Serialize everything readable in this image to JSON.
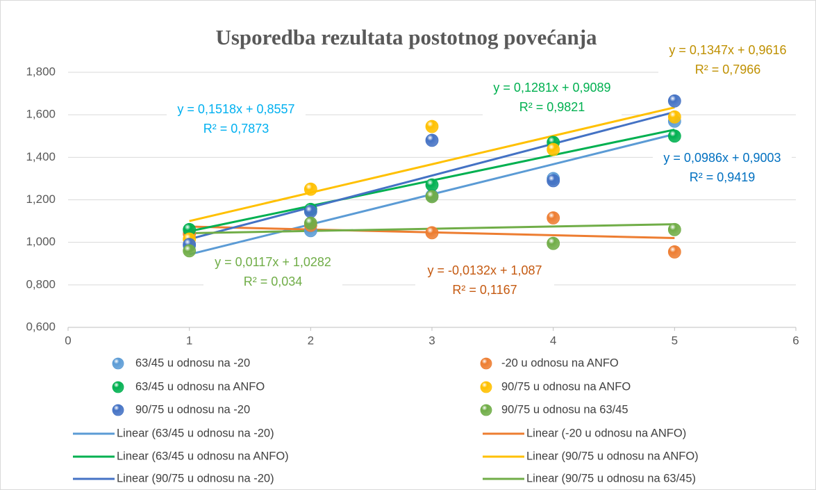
{
  "chart_data": {
    "type": "scatter",
    "title": "Usporedba rezultata postotnog povećanja",
    "x": [
      1,
      2,
      3,
      4,
      5
    ],
    "series": [
      {
        "name": "63/45 u odnosu na -20",
        "color": "#5b9bd5",
        "values": [
          0.985,
          1.055,
          1.22,
          1.3,
          1.57
        ]
      },
      {
        "name": "-20 u odnosu na ANFO",
        "color": "#ed7d31",
        "values": [
          1.04,
          1.08,
          1.045,
          1.115,
          0.955
        ]
      },
      {
        "name": "63/45 u odnosu na ANFO",
        "color": "#00b050",
        "values": [
          1.06,
          1.155,
          1.27,
          1.47,
          1.5
        ]
      },
      {
        "name": "90/75 u odnosu na ANFO",
        "color": "#ffc000",
        "values": [
          1.015,
          1.25,
          1.545,
          1.437,
          1.59
        ]
      },
      {
        "name": "90/75 u odnosu na -20",
        "color": "#4472c4",
        "values": [
          0.99,
          1.145,
          1.48,
          1.29,
          1.665
        ]
      },
      {
        "name": "90/75 u odnosu na 63/45",
        "color": "#70ad47",
        "values": [
          0.96,
          1.09,
          1.215,
          0.995,
          1.06
        ]
      }
    ],
    "trendline_names": [
      "Linear (63/45 u odnosu na -20)",
      "Linear (-20 u odnosu na ANFO)",
      "Linear (63/45 u odnosu na ANFO)",
      "Linear (90/75 u odnosu na ANFO)",
      "Linear (90/75 u odnosu na -20)",
      "Linear (90/75 u odnosu na 63/45)"
    ],
    "annotations": [
      {
        "lines": [
          "y = 0,1518x + 0,8557",
          "R² = 0,7873"
        ],
        "color": "#00b0f0"
      },
      {
        "lines": [
          "y = 0,0986x + 0,9003",
          "R² = 0,9419"
        ],
        "color": "#0070c0"
      },
      {
        "lines": [
          "y = -0,0132x + 1,087",
          "R² = 0,1167"
        ],
        "color": "#c55a11"
      },
      {
        "lines": [
          "y = 0,1281x + 0,9089",
          "R² = 0,9821"
        ],
        "color": "#00b050"
      },
      {
        "lines": [
          "y = 0,1347x + 0,9616",
          "R² = 0,7966"
        ],
        "color": "#bf9000"
      },
      {
        "lines": [
          "y = 0,0117x + 1,0282",
          "R² = 0,034"
        ],
        "color": "#70ad47"
      }
    ],
    "xlim": [
      0,
      6
    ],
    "xticks": [
      0,
      1,
      2,
      3,
      4,
      5,
      6
    ],
    "ylim": [
      0.6,
      1.8
    ],
    "yticks": [
      {
        "value": 0.6,
        "label": "0,600"
      },
      {
        "value": 0.8,
        "label": "0,800"
      },
      {
        "value": 1,
        "label": "1,000"
      },
      {
        "value": 1.2,
        "label": "1,200"
      },
      {
        "value": 1.4,
        "label": "1,400"
      },
      {
        "value": 1.6,
        "label": "1,600"
      },
      {
        "value": 1.8,
        "label": "1,800"
      }
    ],
    "grid": true,
    "legend": "bottom"
  }
}
